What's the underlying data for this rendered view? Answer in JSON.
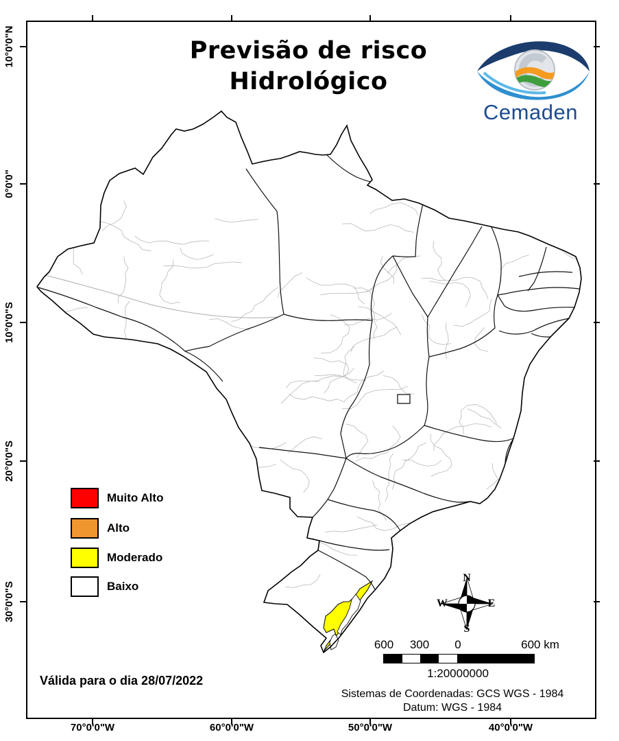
{
  "title": {
    "line1": "Previsão de risco",
    "line2": "Hidrológico"
  },
  "logo": {
    "brand": "Cemaden"
  },
  "legend": {
    "items": [
      {
        "label": "Muito Alto",
        "color": "#fe0000"
      },
      {
        "label": "Alto",
        "color": "#f0962e"
      },
      {
        "label": "Moderado",
        "color": "#ffff00"
      },
      {
        "label": "Baixo",
        "color": "#ffffff"
      }
    ]
  },
  "validity": "Válida para o dia 28/07/2022",
  "crs": {
    "line1": "Sistemas de Coordenadas: GCS WGS - 1984",
    "line2": "Datum: WGS - 1984"
  },
  "scale_bar": {
    "labels": [
      "600",
      "300",
      "0",
      "600 km"
    ],
    "ratio": "1:20000000"
  },
  "compass": {
    "n": "N",
    "s": "S",
    "e": "E",
    "w": "W"
  },
  "axes": {
    "lat": [
      "10°0'0\"N",
      "0°0'0\"",
      "10°0'0\"S",
      "20°0'0\"S",
      "30°0'0\"S"
    ],
    "lon": [
      "70°0'0\"W",
      "60°0'0\"W",
      "50°0'0\"W",
      "40°0'0\"W"
    ]
  },
  "colors": {
    "state_border": "#000000",
    "municipal_border": "#b8b8b8",
    "logo_navy": "#1b3c6d",
    "logo_blue": "#2e8fd0",
    "logo_orange": "#f49b20",
    "logo_green": "#3f9e3c"
  }
}
